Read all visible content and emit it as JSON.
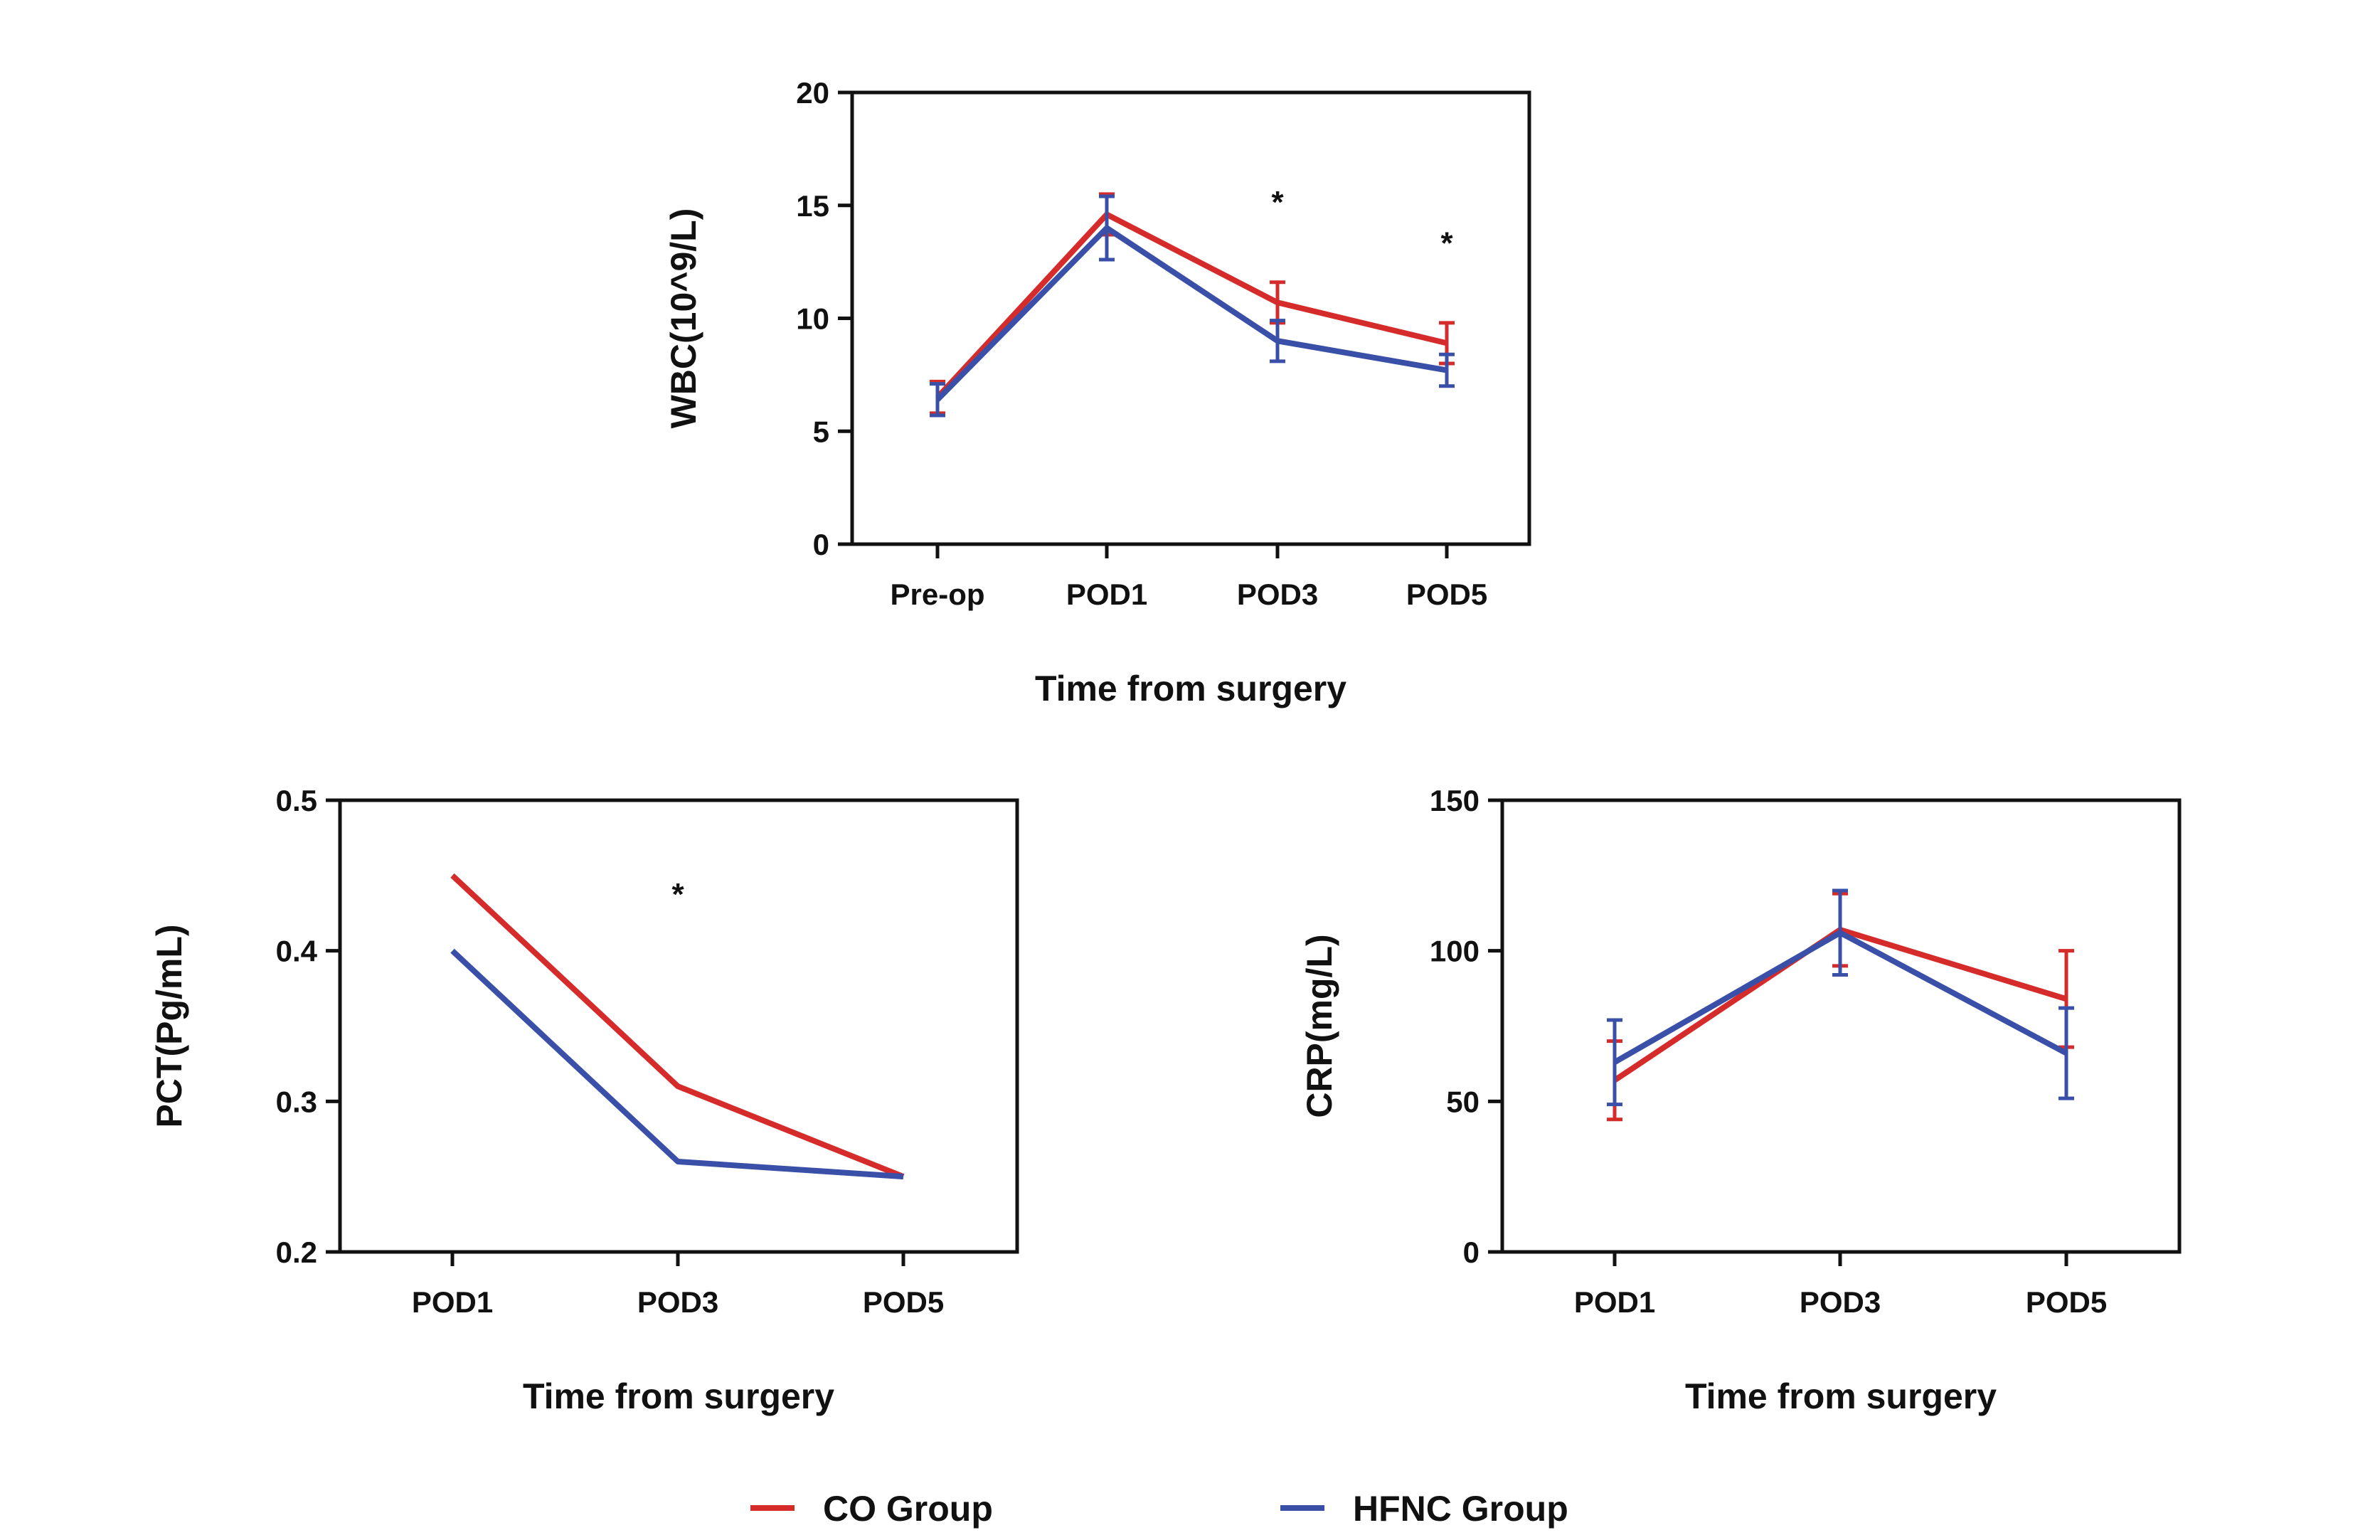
{
  "colors": {
    "co": "#d62b2b",
    "hfnc": "#3a4fa8",
    "axis": "#111111"
  },
  "legend": [
    {
      "key": "co",
      "label": "CO Group",
      "color": "#d62b2b"
    },
    {
      "key": "hfnc",
      "label": "HFNC Group",
      "color": "#3a4fa8"
    }
  ],
  "chart_data": [
    {
      "id": "wbc",
      "type": "line",
      "categories": [
        "Pre-op",
        "POD1",
        "POD3",
        "POD5"
      ],
      "ylabel": "WBC(10^9/L)",
      "xlabel": "Time from surgery",
      "ylim": [
        0,
        20
      ],
      "yticks": [
        0,
        5,
        10,
        15,
        20
      ],
      "ytick_labels": [
        "0",
        "5",
        "10",
        "15",
        "20"
      ],
      "series": [
        {
          "key": "co",
          "values": [
            6.5,
            14.6,
            10.7,
            8.9
          ],
          "err": [
            0.7,
            0.9,
            0.9,
            0.9
          ]
        },
        {
          "key": "hfnc",
          "values": [
            6.4,
            14.0,
            9.0,
            7.7
          ],
          "err": [
            0.7,
            1.4,
            0.9,
            0.7
          ]
        }
      ],
      "annotations": [
        {
          "category": "POD3",
          "y": 15.3,
          "text": "*"
        },
        {
          "category": "POD5",
          "y": 13.5,
          "text": "*"
        }
      ]
    },
    {
      "id": "pct",
      "type": "line",
      "categories": [
        "POD1",
        "POD3",
        "POD5"
      ],
      "ylabel": "PCT(Pg/mL)",
      "xlabel": "Time from surgery",
      "ylim": [
        0.2,
        0.5
      ],
      "yticks": [
        0.2,
        0.3,
        0.4,
        0.5
      ],
      "ytick_labels": [
        "0.2",
        "0.3",
        "0.4",
        "0.5"
      ],
      "series": [
        {
          "key": "co",
          "values": [
            0.45,
            0.31,
            0.25
          ]
        },
        {
          "key": "hfnc",
          "values": [
            0.4,
            0.26,
            0.25
          ]
        }
      ],
      "annotations": [
        {
          "category": "POD3",
          "y": 0.44,
          "text": "*"
        }
      ]
    },
    {
      "id": "crp",
      "type": "line",
      "categories": [
        "POD1",
        "POD3",
        "POD5"
      ],
      "ylabel": "CRP(mg/L)",
      "xlabel": "Time from surgery",
      "ylim": [
        0,
        150
      ],
      "yticks": [
        0,
        50,
        100,
        150
      ],
      "ytick_labels": [
        "0",
        "50",
        "100",
        "150"
      ],
      "series": [
        {
          "key": "co",
          "values": [
            57,
            107,
            84
          ],
          "err": [
            13,
            12,
            16
          ]
        },
        {
          "key": "hfnc",
          "values": [
            63,
            106,
            66
          ],
          "err": [
            14,
            14,
            15
          ]
        }
      ],
      "annotations": []
    }
  ]
}
